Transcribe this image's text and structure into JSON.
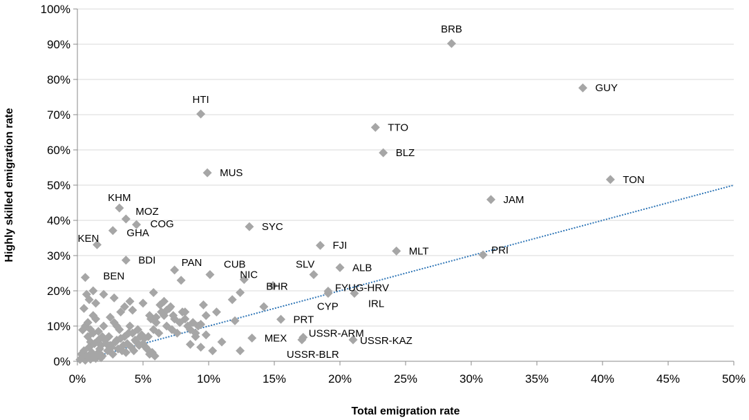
{
  "chart_data": {
    "type": "scatter",
    "title": "",
    "xlabel": "Total emigration rate",
    "ylabel": "Highly skilled emigration rate",
    "xlim": [
      0,
      0.5
    ],
    "ylim": [
      0,
      1.0
    ],
    "x_ticks": [
      "0%",
      "5%",
      "10%",
      "15%",
      "20%",
      "25%",
      "30%",
      "35%",
      "40%",
      "45%",
      "50%"
    ],
    "y_ticks": [
      "0%",
      "10%",
      "20%",
      "30%",
      "40%",
      "50%",
      "60%",
      "70%",
      "80%",
      "90%",
      "100%"
    ],
    "grid": "horizontal",
    "colors": {
      "marker": "#a6a6a6",
      "trendline": "#2e75b6",
      "grid": "#d9d9d9",
      "axis": "#888888"
    },
    "trendline": {
      "type": "linear",
      "x": [
        0,
        0.5
      ],
      "y": [
        0.0,
        0.5
      ]
    },
    "labeled_points": [
      {
        "label": "BRB",
        "x": 0.285,
        "y": 0.902
      },
      {
        "label": "GUY",
        "x": 0.385,
        "y": 0.776
      },
      {
        "label": "HTI",
        "x": 0.094,
        "y": 0.702
      },
      {
        "label": "TTO",
        "x": 0.227,
        "y": 0.664
      },
      {
        "label": "BLZ",
        "x": 0.233,
        "y": 0.592
      },
      {
        "label": "MUS",
        "x": 0.099,
        "y": 0.535
      },
      {
        "label": "TON",
        "x": 0.406,
        "y": 0.516
      },
      {
        "label": "JAM",
        "x": 0.315,
        "y": 0.459
      },
      {
        "label": "KHM",
        "x": 0.032,
        "y": 0.435
      },
      {
        "label": "MOZ",
        "x": 0.037,
        "y": 0.404
      },
      {
        "label": "COG",
        "x": 0.045,
        "y": 0.388
      },
      {
        "label": "SYC",
        "x": 0.131,
        "y": 0.382
      },
      {
        "label": "KEN",
        "x": 0.015,
        "y": 0.331
      },
      {
        "label": "GHA",
        "x": 0.027,
        "y": 0.371
      },
      {
        "label": "FJI",
        "x": 0.185,
        "y": 0.329
      },
      {
        "label": "MLT",
        "x": 0.243,
        "y": 0.313
      },
      {
        "label": "PRI",
        "x": 0.309,
        "y": 0.302
      },
      {
        "label": "BDI",
        "x": 0.037,
        "y": 0.287
      },
      {
        "label": "PAN",
        "x": 0.074,
        "y": 0.259
      },
      {
        "label": "CUB",
        "x": 0.101,
        "y": 0.246
      },
      {
        "label": "SLV",
        "x": 0.18,
        "y": 0.246
      },
      {
        "label": "ALB",
        "x": 0.2,
        "y": 0.266
      },
      {
        "label": "BEN",
        "x": 0.006,
        "y": 0.238
      },
      {
        "label": "NIC",
        "x": 0.127,
        "y": 0.232
      },
      {
        "label": "BHR",
        "x": 0.149,
        "y": 0.215
      },
      {
        "label": "FYUG-HRV",
        "x": 0.191,
        "y": 0.199
      },
      {
        "label": "CYP",
        "x": 0.191,
        "y": 0.193
      },
      {
        "label": "IRL",
        "x": 0.211,
        "y": 0.193
      },
      {
        "label": "PRT",
        "x": 0.155,
        "y": 0.119
      },
      {
        "label": "USSR-ARM",
        "x": 0.172,
        "y": 0.068
      },
      {
        "label": "USSR-KAZ",
        "x": 0.21,
        "y": 0.061
      },
      {
        "label": "MEX",
        "x": 0.133,
        "y": 0.066
      },
      {
        "label": "USSR-BLR",
        "x": 0.171,
        "y": 0.061
      }
    ],
    "unlabeled_points": [
      [
        0.004,
        0.089
      ],
      [
        0.006,
        0.1
      ],
      [
        0.008,
        0.07
      ],
      [
        0.01,
        0.055
      ],
      [
        0.012,
        0.08
      ],
      [
        0.014,
        0.12
      ],
      [
        0.016,
        0.06
      ],
      [
        0.018,
        0.045
      ],
      [
        0.02,
        0.1
      ],
      [
        0.022,
        0.05
      ],
      [
        0.024,
        0.07
      ],
      [
        0.026,
        0.04
      ],
      [
        0.028,
        0.11
      ],
      [
        0.03,
        0.06
      ],
      [
        0.032,
        0.09
      ],
      [
        0.034,
        0.03
      ],
      [
        0.036,
        0.07
      ],
      [
        0.038,
        0.05
      ],
      [
        0.04,
        0.1
      ],
      [
        0.042,
        0.08
      ],
      [
        0.044,
        0.06
      ],
      [
        0.046,
        0.09
      ],
      [
        0.048,
        0.07
      ],
      [
        0.05,
        0.05
      ],
      [
        0.052,
        0.04
      ],
      [
        0.054,
        0.07
      ],
      [
        0.056,
        0.12
      ],
      [
        0.058,
        0.09
      ],
      [
        0.06,
        0.11
      ],
      [
        0.062,
        0.08
      ],
      [
        0.064,
        0.14
      ],
      [
        0.066,
        0.13
      ],
      [
        0.068,
        0.1
      ],
      [
        0.07,
        0.15
      ],
      [
        0.072,
        0.09
      ],
      [
        0.074,
        0.12
      ],
      [
        0.076,
        0.08
      ],
      [
        0.078,
        0.11
      ],
      [
        0.08,
        0.14
      ],
      [
        0.082,
        0.12
      ],
      [
        0.084,
        0.1
      ],
      [
        0.086,
        0.09
      ],
      [
        0.088,
        0.11
      ],
      [
        0.09,
        0.07
      ],
      [
        0.092,
        0.1
      ],
      [
        0.094,
        0.04
      ],
      [
        0.096,
        0.16
      ],
      [
        0.098,
        0.075
      ],
      [
        0.003,
        0.02
      ],
      [
        0.005,
        0.03
      ],
      [
        0.007,
        0.015
      ],
      [
        0.009,
        0.04
      ],
      [
        0.011,
        0.025
      ],
      [
        0.013,
        0.05
      ],
      [
        0.015,
        0.02
      ],
      [
        0.017,
        0.035
      ],
      [
        0.019,
        0.015
      ],
      [
        0.021,
        0.06
      ],
      [
        0.023,
        0.03
      ],
      [
        0.025,
        0.045
      ],
      [
        0.027,
        0.02
      ],
      [
        0.029,
        0.055
      ],
      [
        0.031,
        0.035
      ],
      [
        0.033,
        0.065
      ],
      [
        0.035,
        0.045
      ],
      [
        0.037,
        0.025
      ],
      [
        0.039,
        0.08
      ],
      [
        0.041,
        0.04
      ],
      [
        0.043,
        0.03
      ],
      [
        0.045,
        0.055
      ],
      [
        0.047,
        0.045
      ],
      [
        0.049,
        0.075
      ],
      [
        0.051,
        0.065
      ],
      [
        0.053,
        0.035
      ],
      [
        0.055,
        0.02
      ],
      [
        0.057,
        0.025
      ],
      [
        0.059,
        0.015
      ],
      [
        0.002,
        0.005
      ],
      [
        0.004,
        0.01
      ],
      [
        0.006,
        0.003
      ],
      [
        0.008,
        0.012
      ],
      [
        0.01,
        0.006
      ],
      [
        0.012,
        0.018
      ],
      [
        0.014,
        0.008
      ],
      [
        0.016,
        0.025
      ],
      [
        0.018,
        0.01
      ],
      [
        0.005,
        0.15
      ],
      [
        0.007,
        0.19
      ],
      [
        0.009,
        0.175
      ],
      [
        0.012,
        0.2
      ],
      [
        0.014,
        0.165
      ],
      [
        0.02,
        0.19
      ],
      [
        0.025,
        0.125
      ],
      [
        0.028,
        0.18
      ],
      [
        0.03,
        0.1
      ],
      [
        0.033,
        0.14
      ],
      [
        0.036,
        0.155
      ],
      [
        0.04,
        0.17
      ],
      [
        0.042,
        0.145
      ],
      [
        0.05,
        0.165
      ],
      [
        0.055,
        0.13
      ],
      [
        0.058,
        0.195
      ],
      [
        0.06,
        0.125
      ],
      [
        0.063,
        0.16
      ],
      [
        0.066,
        0.17
      ],
      [
        0.068,
        0.145
      ],
      [
        0.071,
        0.155
      ],
      [
        0.073,
        0.13
      ],
      [
        0.079,
        0.23
      ],
      [
        0.082,
        0.14
      ],
      [
        0.086,
        0.048
      ],
      [
        0.09,
        0.08
      ],
      [
        0.094,
        0.105
      ],
      [
        0.098,
        0.13
      ],
      [
        0.103,
        0.03
      ],
      [
        0.106,
        0.14
      ],
      [
        0.11,
        0.055
      ],
      [
        0.118,
        0.175
      ],
      [
        0.12,
        0.115
      ],
      [
        0.124,
        0.195
      ],
      [
        0.124,
        0.03
      ],
      [
        0.142,
        0.155
      ],
      [
        0.008,
        0.11
      ],
      [
        0.01,
        0.09
      ],
      [
        0.012,
        0.13
      ],
      [
        0.016,
        0.085
      ],
      [
        0.019,
        0.07
      ]
    ]
  }
}
